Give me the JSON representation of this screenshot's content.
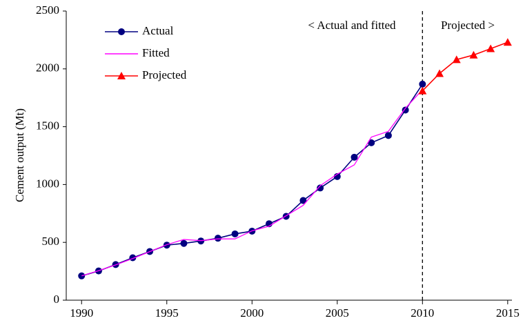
{
  "chart_data": {
    "type": "line",
    "y_label": "Cement output (Mt)",
    "xlim": [
      1989.1,
      2015.25
    ],
    "xticks": [
      1990,
      1995,
      2000,
      2005,
      2010,
      2015
    ],
    "ylim": [
      0,
      2500
    ],
    "yticks": [
      0,
      500,
      1000,
      1500,
      2000,
      2500
    ],
    "grid": false,
    "legend": "top-left",
    "divider": 2010,
    "annotations": [
      "< Actual and fitted",
      "Projected >"
    ],
    "series": [
      {
        "name": "Actual",
        "color": "#000080",
        "marker": "circle",
        "x": [
          1990,
          1991,
          1992,
          1993,
          1994,
          1995,
          1996,
          1997,
          1998,
          1999,
          2000,
          2001,
          2002,
          2003,
          2004,
          2005,
          2006,
          2007,
          2008,
          2009,
          2010
        ],
        "values": [
          210,
          253,
          308,
          367,
          421,
          476,
          491,
          512,
          536,
          573,
          597,
          661,
          725,
          862,
          970,
          1069,
          1236,
          1361,
          1424,
          1644,
          1868
        ]
      },
      {
        "name": "Fitted",
        "color": "#ff00ff",
        "marker": "none",
        "x": [
          1990,
          1991,
          1992,
          1993,
          1994,
          1995,
          1996,
          1997,
          1998,
          1999,
          2000,
          2001,
          2002,
          2003,
          2004,
          2005,
          2006,
          2007,
          2008,
          2009,
          2010
        ],
        "values": [
          210,
          255,
          305,
          360,
          420,
          480,
          525,
          515,
          530,
          530,
          600,
          640,
          730,
          820,
          990,
          1090,
          1170,
          1410,
          1460,
          1660,
          1820
        ]
      },
      {
        "name": "Projected",
        "color": "#ff0000",
        "marker": "triangle",
        "x": [
          2010,
          2011,
          2012,
          2013,
          2014,
          2015
        ],
        "values": [
          1810,
          1960,
          2080,
          2120,
          2175,
          2230
        ]
      }
    ]
  }
}
